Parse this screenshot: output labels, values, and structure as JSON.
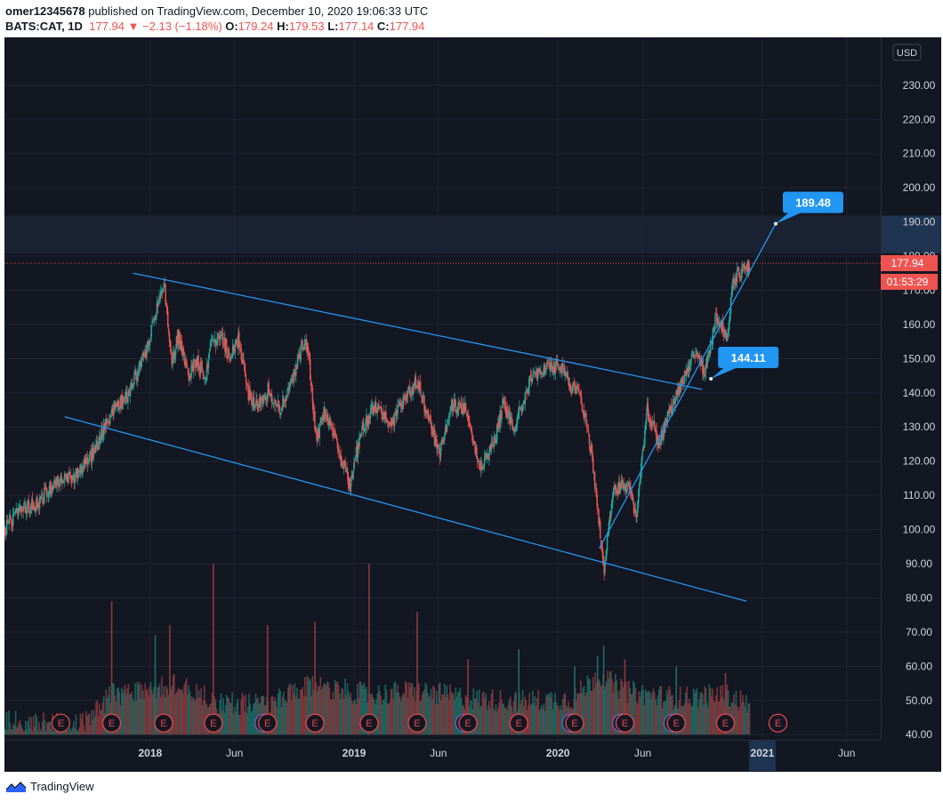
{
  "header": {
    "user": "omer12345678",
    "published": " published on TradingView.com, December 10, 2020 19:06:33 UTC",
    "symbol": "BATS:CAT, 1D",
    "last": "177.94",
    "arrow": "▼",
    "change": "−2.13 (−1.18%)",
    "o_label": "O:",
    "o": "179.24",
    "h_label": "H:",
    "h": "179.53",
    "l_label": "L:",
    "l": "177.14",
    "c_label": "C:",
    "c": "177.94"
  },
  "footer": {
    "brand": "TradingView"
  },
  "colors": {
    "background": "#131722",
    "up": "#26a69a",
    "down": "#ef5350",
    "trendline": "#2196f3",
    "axis_text": "#d1d4dc",
    "grid": "#1f2433"
  },
  "chart_data": {
    "type": "line",
    "currency_label": "USD",
    "y_ticks": [
      40,
      50,
      60,
      70,
      80,
      90,
      100,
      110,
      120,
      130,
      140,
      150,
      160,
      170,
      180,
      190,
      200,
      210,
      220,
      230
    ],
    "y_tick_labels": [
      "40.00",
      "50.00",
      "60.00",
      "70.00",
      "80.00",
      "90.00",
      "100.00",
      "110.00",
      "120.00",
      "130.00",
      "140.00",
      "150.00",
      "160.00",
      "170.00",
      "180.00",
      "190.00",
      "200.00",
      "210.00",
      "220.00",
      "230.00"
    ],
    "ylim": [
      38.5,
      244
    ],
    "xlim": [
      "2017-04-15",
      "2021-08-01"
    ],
    "x_ticks": [
      {
        "date": "2018-01-01",
        "label": "2018",
        "bold": true
      },
      {
        "date": "2018-06-01",
        "label": "Jun",
        "bold": false
      },
      {
        "date": "2019-01-01",
        "label": "2019",
        "bold": true
      },
      {
        "date": "2019-06-01",
        "label": "Jun",
        "bold": false
      },
      {
        "date": "2020-01-01",
        "label": "2020",
        "bold": true
      },
      {
        "date": "2020-06-01",
        "label": "Jun",
        "bold": false
      },
      {
        "date": "2021-01-01",
        "label": "2021",
        "bold": true
      },
      {
        "date": "2021-06-01",
        "label": "Jun",
        "bold": false
      }
    ],
    "price_path": [
      [
        "2017-04-15",
        100
      ],
      [
        "2017-05-10",
        105
      ],
      [
        "2017-06-15",
        108
      ],
      [
        "2017-07-15",
        114
      ],
      [
        "2017-08-15",
        115
      ],
      [
        "2017-09-20",
        122
      ],
      [
        "2017-10-25",
        135
      ],
      [
        "2017-11-20",
        139
      ],
      [
        "2017-12-25",
        152
      ],
      [
        "2018-01-15",
        166
      ],
      [
        "2018-01-26",
        172
      ],
      [
        "2018-02-08",
        148
      ],
      [
        "2018-02-20",
        157
      ],
      [
        "2018-03-10",
        145
      ],
      [
        "2018-03-25",
        150
      ],
      [
        "2018-04-10",
        144
      ],
      [
        "2018-04-20",
        155
      ],
      [
        "2018-05-10",
        156
      ],
      [
        "2018-05-25",
        150
      ],
      [
        "2018-06-08",
        156
      ],
      [
        "2018-06-25",
        140
      ],
      [
        "2018-07-10",
        136
      ],
      [
        "2018-08-01",
        141
      ],
      [
        "2018-08-20",
        135
      ],
      [
        "2018-09-10",
        142
      ],
      [
        "2018-10-01",
        155
      ],
      [
        "2018-10-10",
        153
      ],
      [
        "2018-10-25",
        126
      ],
      [
        "2018-11-10",
        135
      ],
      [
        "2018-12-24",
        113
      ],
      [
        "2019-01-15",
        130
      ],
      [
        "2019-02-10",
        136
      ],
      [
        "2019-03-10",
        131
      ],
      [
        "2019-04-05",
        140
      ],
      [
        "2019-04-25",
        143
      ],
      [
        "2019-05-15",
        132
      ],
      [
        "2019-06-03",
        122
      ],
      [
        "2019-06-25",
        136
      ],
      [
        "2019-07-20",
        136
      ],
      [
        "2019-08-15",
        118
      ],
      [
        "2019-09-10",
        126
      ],
      [
        "2019-09-25",
        137
      ],
      [
        "2019-10-15",
        130
      ],
      [
        "2019-11-15",
        145
      ],
      [
        "2019-12-15",
        147
      ],
      [
        "2020-01-10",
        148
      ],
      [
        "2020-01-25",
        141
      ],
      [
        "2020-02-10",
        139
      ],
      [
        "2020-02-25",
        128
      ],
      [
        "2020-03-10",
        110
      ],
      [
        "2020-03-23",
        88
      ],
      [
        "2020-04-08",
        110
      ],
      [
        "2020-04-25",
        113
      ],
      [
        "2020-05-10",
        112
      ],
      [
        "2020-05-20",
        103
      ],
      [
        "2020-06-08",
        135
      ],
      [
        "2020-06-30",
        125
      ],
      [
        "2020-07-20",
        135
      ],
      [
        "2020-08-10",
        143
      ],
      [
        "2020-09-01",
        152
      ],
      [
        "2020-09-20",
        145
      ],
      [
        "2020-10-10",
        162
      ],
      [
        "2020-10-30",
        157
      ],
      [
        "2020-11-10",
        173
      ],
      [
        "2020-11-25",
        176
      ],
      [
        "2020-12-10",
        177.94
      ]
    ],
    "volume_path": [
      [
        "2017-04-15",
        44
      ],
      [
        "2017-09-01",
        43
      ],
      [
        "2017-10-24",
        52
      ],
      [
        "2018-01-26",
        54
      ],
      [
        "2018-02-08",
        56
      ],
      [
        "2018-04-24",
        50
      ],
      [
        "2018-07-30",
        49
      ],
      [
        "2018-10-23",
        55
      ],
      [
        "2018-12-24",
        53
      ],
      [
        "2019-01-28",
        52
      ],
      [
        "2019-04-24",
        53
      ],
      [
        "2019-07-24",
        51
      ],
      [
        "2019-10-23",
        50
      ],
      [
        "2020-01-31",
        51
      ],
      [
        "2020-03-12",
        58
      ],
      [
        "2020-04-30",
        53
      ],
      [
        "2020-07-31",
        51
      ],
      [
        "2020-10-27",
        52
      ],
      [
        "2020-12-10",
        49
      ]
    ],
    "volume_spikes": [
      {
        "date": "2017-10-24",
        "value": 79,
        "up": false
      },
      {
        "date": "2018-01-10",
        "value": 69,
        "up": true
      },
      {
        "date": "2018-02-05",
        "value": 72,
        "up": false
      },
      {
        "date": "2018-04-24",
        "value": 90,
        "up": false
      },
      {
        "date": "2018-07-30",
        "value": 72,
        "up": false
      },
      {
        "date": "2018-10-23",
        "value": 73,
        "up": false
      },
      {
        "date": "2019-01-28",
        "value": 90,
        "up": false
      },
      {
        "date": "2019-04-24",
        "value": 76,
        "up": false
      },
      {
        "date": "2019-07-24",
        "value": 62,
        "up": false
      },
      {
        "date": "2019-10-23",
        "value": 65,
        "up": true
      },
      {
        "date": "2020-01-31",
        "value": 60,
        "up": true
      },
      {
        "date": "2020-03-12",
        "value": 63,
        "up": true
      },
      {
        "date": "2020-03-23",
        "value": 66,
        "up": true
      },
      {
        "date": "2020-04-30",
        "value": 62,
        "up": false
      },
      {
        "date": "2020-07-31",
        "value": 60,
        "up": true
      },
      {
        "date": "2020-10-27",
        "value": 58,
        "up": false
      }
    ],
    "earnings_dates": [
      "2017-07-25",
      "2017-10-24",
      "2018-01-25",
      "2018-04-24",
      "2018-07-30",
      "2018-10-23",
      "2019-01-28",
      "2019-04-24",
      "2019-07-24",
      "2019-10-23",
      "2020-01-31",
      "2020-04-30",
      "2020-07-31",
      "2020-10-27",
      "2021-01-29"
    ],
    "earnings_overlap": [
      "2018-07-30",
      "2019-07-24",
      "2020-01-31",
      "2020-04-30",
      "2020-07-31"
    ],
    "earnings_label": "E",
    "trendlines": [
      {
        "from": [
          "2017-12-01",
          175
        ],
        "to": [
          "2020-09-15",
          141
        ]
      },
      {
        "from": [
          "2017-08-01",
          133
        ],
        "to": [
          "2020-12-04",
          79
        ]
      },
      {
        "from": [
          "2020-03-15",
          94.5
        ],
        "to": [
          "2021-01-25",
          189.48
        ]
      }
    ],
    "annotations": [
      {
        "label": "189.48",
        "date": "2021-01-25",
        "value": 189.48
      },
      {
        "label": "144.11",
        "date": "2020-10-01",
        "value": 144.11
      }
    ],
    "last_price": {
      "value": 177.94,
      "label": "177.94",
      "countdown": "01:53:29"
    },
    "highlight_y_range": [
      180.8,
      191.8
    ],
    "highlight_x_label": "2021"
  }
}
